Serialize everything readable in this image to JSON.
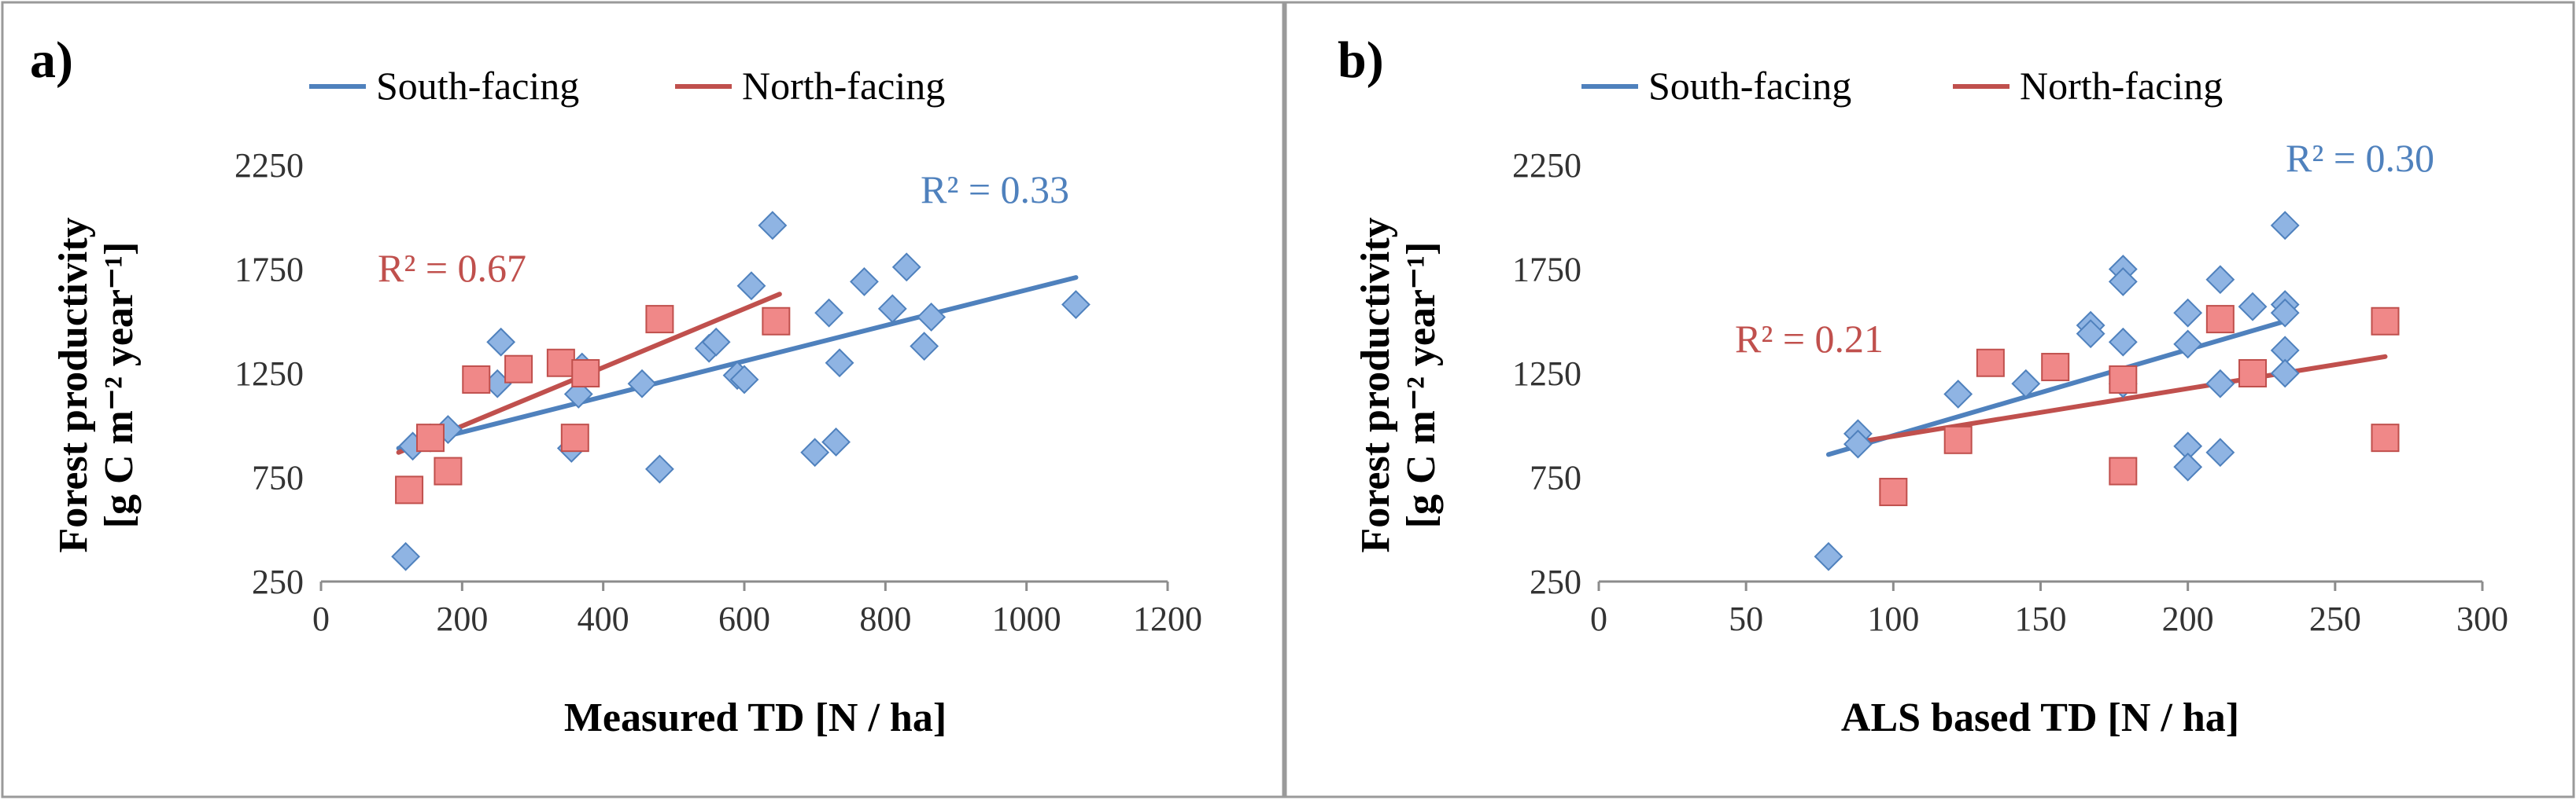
{
  "colors": {
    "south": "#4f81bd",
    "north": "#c0504d",
    "south_marker_fill": "#8fb4e3",
    "south_marker_stroke": "#4f81bd",
    "north_marker_fill": "#f08888",
    "north_marker_stroke": "#c0504d"
  },
  "chart_data": [
    {
      "panel": "a)",
      "type": "scatter",
      "xlabel": "Measured TD [N / ha]",
      "ylabel_line1": "Forest productivity",
      "ylabel_line2": "[g C m⁻² year⁻¹]",
      "xlim": [
        0,
        1200
      ],
      "ylim": [
        250,
        2250
      ],
      "xticks": [
        0,
        200,
        400,
        600,
        800,
        1000,
        1200
      ],
      "yticks": [
        250,
        750,
        1250,
        1750,
        2250
      ],
      "legend": [
        "South-facing",
        "North-facing"
      ],
      "series": [
        {
          "name": "South-facing",
          "marker": "diamond",
          "points": [
            [
              120,
              370
            ],
            [
              130,
              900
            ],
            [
              155,
              940
            ],
            [
              180,
              980
            ],
            [
              250,
              1200
            ],
            [
              255,
              1400
            ],
            [
              355,
              890
            ],
            [
              365,
              1150
            ],
            [
              370,
              1280
            ],
            [
              455,
              1200
            ],
            [
              480,
              790
            ],
            [
              550,
              1370
            ],
            [
              560,
              1400
            ],
            [
              590,
              1240
            ],
            [
              600,
              1220
            ],
            [
              610,
              1670
            ],
            [
              640,
              1960
            ],
            [
              700,
              870
            ],
            [
              720,
              1540
            ],
            [
              730,
              920
            ],
            [
              735,
              1300
            ],
            [
              770,
              1690
            ],
            [
              810,
              1560
            ],
            [
              830,
              1760
            ],
            [
              855,
              1380
            ],
            [
              865,
              1520
            ],
            [
              1070,
              1580
            ]
          ],
          "trend": {
            "x": [
              110,
              1070
            ],
            "y": [
              890,
              1710
            ]
          },
          "r2_label": "R² = 0.33"
        },
        {
          "name": "North-facing",
          "marker": "square",
          "points": [
            [
              125,
              690
            ],
            [
              155,
              940
            ],
            [
              180,
              780
            ],
            [
              220,
              1220
            ],
            [
              280,
              1270
            ],
            [
              340,
              1300
            ],
            [
              360,
              940
            ],
            [
              375,
              1250
            ],
            [
              480,
              1510
            ],
            [
              645,
              1500
            ]
          ],
          "trend": {
            "x": [
              110,
              650
            ],
            "y": [
              870,
              1630
            ]
          },
          "r2_label": "R² = 0.67"
        }
      ]
    },
    {
      "panel": "b)",
      "type": "scatter",
      "xlabel": "ALS based TD [N / ha]",
      "ylabel_line1": "Forest productivity",
      "ylabel_line2": "[g C m⁻² year⁻¹]",
      "xlim": [
        0,
        300
      ],
      "ylim": [
        250,
        2250
      ],
      "xticks": [
        0,
        50,
        100,
        150,
        200,
        250,
        300
      ],
      "yticks": [
        250,
        750,
        1250,
        1750,
        2250
      ],
      "legend": [
        "South-facing",
        "North-facing"
      ],
      "series": [
        {
          "name": "South-facing",
          "marker": "diamond",
          "points": [
            [
              78,
              370
            ],
            [
              88,
              960
            ],
            [
              88,
              910
            ],
            [
              122,
              1150
            ],
            [
              145,
              1200
            ],
            [
              167,
              1480
            ],
            [
              167,
              1440
            ],
            [
              178,
              1750
            ],
            [
              178,
              1690
            ],
            [
              178,
              1400
            ],
            [
              178,
              1200
            ],
            [
              200,
              1540
            ],
            [
              200,
              1390
            ],
            [
              200,
              900
            ],
            [
              200,
              800
            ],
            [
              211,
              1700
            ],
            [
              211,
              1200
            ],
            [
              211,
              870
            ],
            [
              222,
              1570
            ],
            [
              233,
              1960
            ],
            [
              233,
              1580
            ],
            [
              233,
              1540
            ],
            [
              233,
              1360
            ],
            [
              233,
              1250
            ]
          ],
          "trend": {
            "x": [
              78,
              233
            ],
            "y": [
              860,
              1500
            ]
          },
          "r2_label": "R² = 0.30"
        },
        {
          "name": "North-facing",
          "marker": "square",
          "points": [
            [
              100,
              680
            ],
            [
              122,
              930
            ],
            [
              133,
              1300
            ],
            [
              155,
              1280
            ],
            [
              178,
              1220
            ],
            [
              178,
              780
            ],
            [
              211,
              1510
            ],
            [
              222,
              1250
            ],
            [
              267,
              1500
            ],
            [
              267,
              940
            ]
          ],
          "trend": {
            "x": [
              88,
              267
            ],
            "y": [
              920,
              1330
            ]
          },
          "r2_label": "R² = 0.21"
        }
      ]
    }
  ]
}
